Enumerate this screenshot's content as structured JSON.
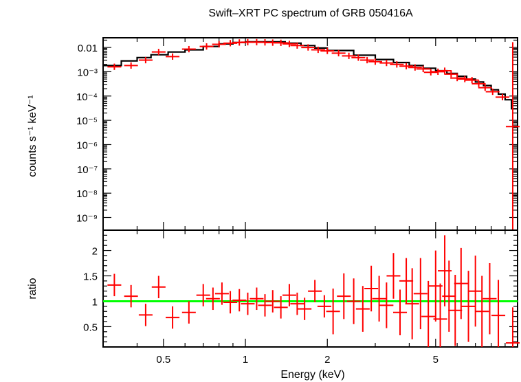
{
  "title": "Swift–XRT PC spectrum of GRB 050416A",
  "colors": {
    "data": "#ff0000",
    "model": "#000000",
    "unity": "#00ff00",
    "axes": "#000000"
  },
  "chart_data": [
    {
      "panel": "spectrum",
      "type": "scatter",
      "xscale": "log",
      "yscale": "log",
      "xlim": [
        0.3,
        10
      ],
      "ylim": [
        3e-10,
        0.025
      ],
      "xlabel": "",
      "ylabel": "counts s⁻¹ keV⁻¹",
      "yticks": [
        "0.01",
        "10⁻³",
        "10⁻⁴",
        "10⁻⁵",
        "10⁻⁶",
        "10⁻⁷",
        "10⁻⁸",
        "10⁻⁹"
      ],
      "series": [
        {
          "kind": "model",
          "x": [
            0.3,
            0.35,
            0.4,
            0.45,
            0.52,
            0.6,
            0.7,
            0.8,
            0.9,
            1.0,
            1.2,
            1.4,
            1.6,
            1.8,
            2.0,
            2.5,
            3.0,
            3.5,
            4.0,
            4.5,
            5.0,
            5.5,
            6.0,
            6.5,
            7.0,
            7.5,
            8.0,
            8.5,
            9.0,
            9.5,
            10.0
          ],
          "values": [
            0.0018,
            0.0028,
            0.0038,
            0.005,
            0.0065,
            0.008,
            0.011,
            0.014,
            0.016,
            0.017,
            0.017,
            0.015,
            0.012,
            0.0095,
            0.0075,
            0.0048,
            0.0032,
            0.0024,
            0.0018,
            0.0014,
            0.0011,
            0.00085,
            0.00065,
            0.0005,
            0.00038,
            0.00027,
            0.00018,
            0.00012,
            7e-05,
            3e-05,
            3e-05
          ]
        },
        {
          "kind": "data",
          "x": [
            0.33,
            0.38,
            0.43,
            0.48,
            0.54,
            0.62,
            0.72,
            0.8,
            0.88,
            0.95,
            1.02,
            1.1,
            1.18,
            1.26,
            1.35,
            1.45,
            1.55,
            1.7,
            1.85,
            2.0,
            2.2,
            2.4,
            2.6,
            2.8,
            3.0,
            3.3,
            3.6,
            3.9,
            4.2,
            4.5,
            4.8,
            5.1,
            5.4,
            5.7,
            6.0,
            6.4,
            6.8,
            7.2,
            7.6,
            8.1,
            8.8,
            9.6
          ],
          "values": [
            0.0016,
            0.0018,
            0.003,
            0.0065,
            0.0042,
            0.0085,
            0.011,
            0.0135,
            0.015,
            0.016,
            0.0165,
            0.0165,
            0.0162,
            0.0158,
            0.0155,
            0.014,
            0.012,
            0.01,
            0.008,
            0.0072,
            0.0058,
            0.0045,
            0.0038,
            0.003,
            0.0026,
            0.0023,
            0.002,
            0.0017,
            0.0015,
            0.0013,
            0.00095,
            0.001,
            0.0011,
            0.0008,
            0.00055,
            0.0005,
            0.00045,
            0.00032,
            0.00022,
            0.00015,
            9e-05,
            5.5e-06
          ]
        }
      ]
    },
    {
      "panel": "ratio",
      "type": "scatter",
      "xscale": "log",
      "xlim": [
        0.3,
        10
      ],
      "ylim": [
        0.1,
        2.4
      ],
      "xlabel": "Energy (keV)",
      "ylabel": "ratio",
      "xticks": [
        "0.5",
        "1",
        "2",
        "5"
      ],
      "yticks": [
        "0.5",
        "1",
        "1.5",
        "2"
      ],
      "reference_line": 1,
      "series": [
        {
          "kind": "data",
          "x": [
            0.33,
            0.38,
            0.43,
            0.48,
            0.54,
            0.62,
            0.7,
            0.76,
            0.82,
            0.88,
            0.95,
            1.02,
            1.1,
            1.18,
            1.26,
            1.35,
            1.45,
            1.55,
            1.65,
            1.8,
            1.95,
            2.1,
            2.3,
            2.5,
            2.7,
            2.9,
            3.1,
            3.3,
            3.5,
            3.7,
            3.9,
            4.1,
            4.4,
            4.7,
            5.0,
            5.2,
            5.4,
            5.6,
            5.9,
            6.2,
            6.6,
            7.0,
            7.4,
            7.9,
            8.5,
            9.6
          ],
          "values": [
            1.32,
            1.1,
            0.73,
            1.28,
            0.68,
            0.78,
            1.12,
            1.05,
            1.15,
            0.98,
            1.02,
            0.95,
            1.05,
            0.92,
            1.0,
            0.88,
            1.12,
            0.95,
            0.85,
            1.2,
            0.9,
            0.8,
            1.1,
            1.0,
            0.85,
            1.25,
            1.05,
            0.92,
            1.5,
            0.78,
            1.4,
            0.95,
            1.15,
            0.7,
            1.3,
            0.65,
            1.6,
            1.1,
            0.82,
            1.35,
            0.9,
            1.2,
            0.8,
            1.05,
            0.72,
            0.18
          ]
        }
      ]
    }
  ]
}
